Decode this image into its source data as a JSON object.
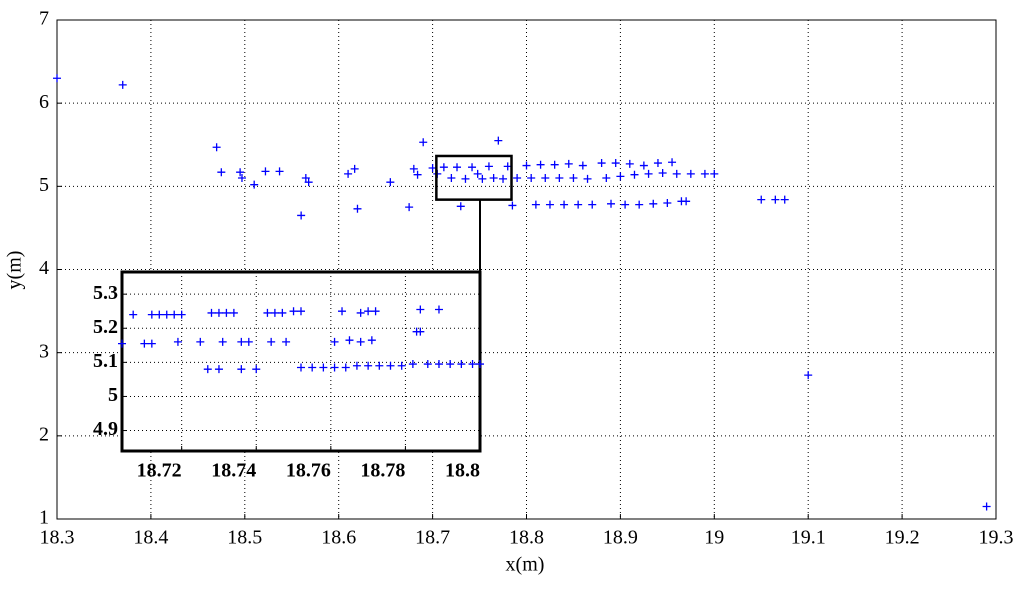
{
  "chart_data": [
    {
      "type": "scatter",
      "xlabel": "x(m)",
      "ylabel": "y(m)",
      "color": "#0000ff",
      "grid": true,
      "xlim": [
        18.3,
        19.3
      ],
      "ylim": [
        1,
        7
      ],
      "xticks": [
        18.3,
        18.4,
        18.5,
        18.6,
        18.7,
        18.8,
        18.9,
        19,
        19.1,
        19.2,
        19.3
      ],
      "yticks": [
        1,
        2,
        3,
        4,
        5,
        6,
        7
      ],
      "x": [
        18.3,
        18.37,
        18.47,
        18.475,
        18.495,
        18.497,
        18.51,
        18.522,
        18.537,
        18.56,
        18.565,
        18.568,
        18.61,
        18.617,
        18.62,
        18.655,
        18.675,
        18.68,
        18.684,
        18.69,
        18.7,
        18.705,
        18.712,
        18.72,
        18.726,
        18.73,
        18.735,
        18.742,
        18.748,
        18.753,
        18.76,
        18.765,
        18.77,
        18.775,
        18.78,
        18.785,
        18.79,
        18.8,
        18.805,
        18.81,
        18.815,
        18.82,
        18.825,
        18.83,
        18.835,
        18.84,
        18.845,
        18.85,
        18.855,
        18.86,
        18.865,
        18.87,
        18.88,
        18.885,
        18.89,
        18.895,
        18.9,
        18.905,
        18.91,
        18.915,
        18.92,
        18.925,
        18.93,
        18.935,
        18.94,
        18.945,
        18.95,
        18.955,
        18.96,
        18.965,
        18.97,
        18.975,
        18.99,
        19.0,
        19.05,
        19.065,
        19.075,
        19.1,
        19.29
      ],
      "values": [
        6.3,
        6.22,
        5.47,
        5.17,
        5.17,
        5.1,
        5.02,
        5.18,
        5.18,
        4.65,
        5.1,
        5.05,
        5.15,
        5.21,
        4.73,
        5.05,
        4.75,
        5.21,
        5.14,
        5.53,
        5.22,
        5.15,
        5.23,
        5.1,
        5.23,
        4.76,
        5.09,
        5.23,
        5.15,
        5.09,
        5.24,
        5.1,
        5.55,
        5.09,
        5.24,
        4.77,
        5.1,
        5.25,
        5.1,
        4.78,
        5.26,
        5.1,
        4.78,
        5.26,
        5.1,
        4.78,
        5.27,
        5.1,
        4.78,
        5.25,
        5.09,
        4.78,
        5.28,
        5.1,
        4.79,
        5.28,
        5.12,
        4.78,
        5.27,
        5.14,
        4.78,
        5.25,
        5.15,
        4.79,
        5.28,
        5.16,
        4.8,
        5.29,
        5.15,
        4.82,
        4.82,
        5.15,
        5.15,
        5.15,
        4.84,
        4.84,
        4.84,
        2.73,
        1.15
      ]
    },
    {
      "type": "scatter",
      "color": "#0000ff",
      "grid": true,
      "xlim": [
        18.704,
        18.8
      ],
      "ylim": [
        4.84,
        5.365
      ],
      "xticks": [
        18.72,
        18.74,
        18.76,
        18.78,
        18.8
      ],
      "yticks": [
        4.9,
        5,
        5.1,
        5.2,
        5.3
      ],
      "x": [
        18.707,
        18.712,
        18.714,
        18.716,
        18.718,
        18.72,
        18.728,
        18.73,
        18.732,
        18.734,
        18.743,
        18.745,
        18.747,
        18.75,
        18.752,
        18.763,
        18.768,
        18.77,
        18.772,
        18.784,
        18.789,
        18.704,
        18.71,
        18.712,
        18.719,
        18.725,
        18.731,
        18.736,
        18.738,
        18.744,
        18.748,
        18.761,
        18.765,
        18.768,
        18.771,
        18.783,
        18.784,
        18.727,
        18.73,
        18.736,
        18.74,
        18.752,
        18.755,
        18.758,
        18.761,
        18.764,
        18.767,
        18.77,
        18.773,
        18.776,
        18.779,
        18.782,
        18.786,
        18.789,
        18.792,
        18.795,
        18.798,
        18.8
      ],
      "values": [
        5.24,
        5.24,
        5.24,
        5.24,
        5.24,
        5.24,
        5.245,
        5.245,
        5.245,
        5.245,
        5.245,
        5.245,
        5.245,
        5.25,
        5.25,
        5.25,
        5.245,
        5.25,
        5.25,
        5.255,
        5.255,
        5.155,
        5.155,
        5.155,
        5.16,
        5.16,
        5.16,
        5.16,
        5.16,
        5.16,
        5.16,
        5.16,
        5.165,
        5.16,
        5.165,
        5.19,
        5.19,
        5.08,
        5.08,
        5.08,
        5.08,
        5.085,
        5.085,
        5.085,
        5.085,
        5.085,
        5.09,
        5.09,
        5.09,
        5.09,
        5.09,
        5.095,
        5.095,
        5.095,
        5.095,
        5.095,
        5.095,
        5.095
      ]
    }
  ]
}
